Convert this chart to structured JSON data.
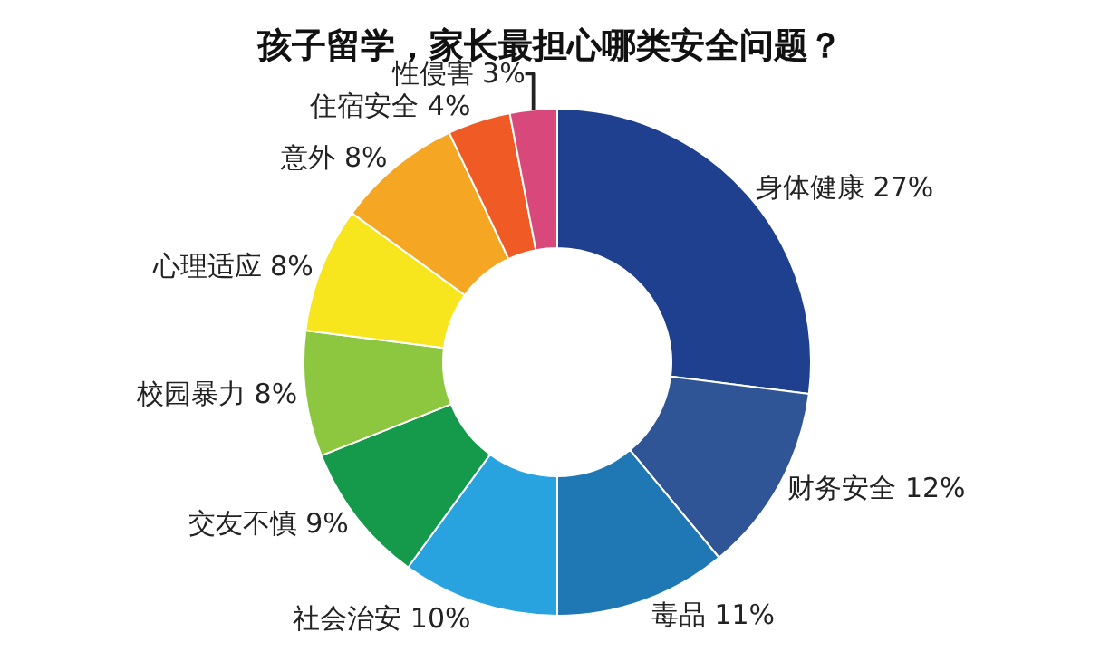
{
  "chart_data": {
    "type": "donut",
    "title": "孩子留学，家长最担心哪类安全问题？",
    "categories": [
      "身体健康",
      "财务安全",
      "毒品",
      "社会治安",
      "交友不慎",
      "校园暴力",
      "心理适应",
      "意外",
      "住宿安全",
      "性侵害"
    ],
    "values": [
      27,
      12,
      11,
      10,
      9,
      8,
      8,
      8,
      4,
      3
    ],
    "value_labels": [
      "27%",
      "12%",
      "11%",
      "10%",
      "9%",
      "8%",
      "8%",
      "8%",
      "4%",
      "3%"
    ],
    "colors": [
      "#1f3f8f",
      "#2f5597",
      "#1f77b4",
      "#29a3e0",
      "#15994a",
      "#8dc63f",
      "#f7e51e",
      "#f5a623",
      "#f05a24",
      "#d9487a"
    ],
    "legend": false
  }
}
